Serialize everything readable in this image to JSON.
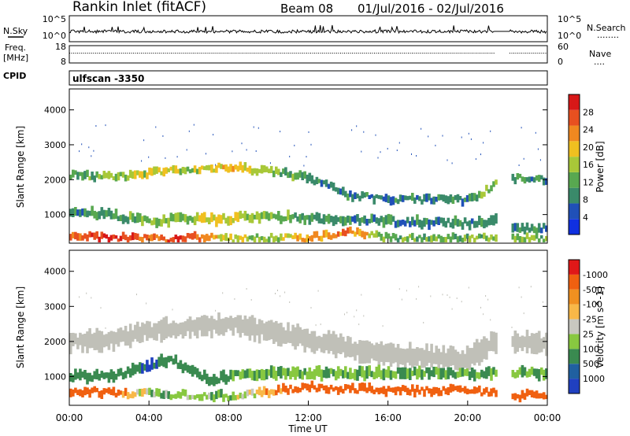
{
  "header": {
    "title": "Rankin Inlet (fitACF)",
    "beam": "Beam 08",
    "date_range": "01/Jul/2016 - 02/Jul/2016"
  },
  "sky_panel": {
    "left_label": "N.Sky",
    "right_label": "N.Search",
    "left_ticks": [
      "10^5",
      "10^0"
    ],
    "right_ticks": [
      "10^5",
      "10^0"
    ],
    "right_legend_glyph": "........"
  },
  "freq_panel": {
    "left_label_line1": "Freq.",
    "left_label_line2": "[MHz]",
    "right_label": "Nave",
    "left_ticks": [
      "18",
      "8"
    ],
    "right_ticks": [
      "60",
      "0"
    ],
    "right_legend_glyph": "...."
  },
  "cpid": {
    "label": "CPID",
    "value": "ulfscan -3350"
  },
  "x_axis": {
    "label": "Time UT",
    "ticks": [
      "00:00",
      "04:00",
      "08:00",
      "12:00",
      "16:00",
      "20:00",
      "00:00"
    ]
  },
  "colors": {
    "power": [
      "#1030e0",
      "#2050b8",
      "#3a8a6a",
      "#58a850",
      "#a8c838",
      "#f0c020",
      "#f08820",
      "#e85020",
      "#d81818"
    ],
    "velocity": [
      "#e01818",
      "#f06010",
      "#f09020",
      "#f8b848",
      "#c8c8c0",
      "#88c840",
      "#3a8a50",
      "#2060a0",
      "#2040c0"
    ],
    "ground_scatter": "#c0c0b8"
  },
  "chart_data": [
    {
      "type": "heatmap",
      "title": "",
      "xlabel": "",
      "ylabel": "Slant Range [km]",
      "xlim": [
        "00:00",
        "00:00"
      ],
      "ylim": [
        180,
        4600
      ],
      "y_ticks": [
        "1000",
        "2000",
        "3000",
        "4000"
      ],
      "colorbar": {
        "label": "Power [dB]",
        "ticks": [
          "4",
          "8",
          "12",
          "16",
          "20",
          "24",
          "28"
        ],
        "range": [
          0,
          30
        ]
      },
      "gaps_hours": [
        [
          21.4,
          22.1
        ]
      ],
      "bands": [
        {
          "feature": "upper scatter band",
          "times_h": [
            0,
            2,
            4,
            5,
            6,
            8,
            10,
            12,
            14,
            16,
            20,
            21.3,
            22.2,
            24
          ],
          "range_km": [
            2150,
            2050,
            2200,
            2250,
            2300,
            2350,
            2250,
            2050,
            1550,
            1450,
            1400,
            1850,
            2050,
            2000
          ],
          "power_db": [
            10,
            14,
            16,
            18,
            14,
            20,
            14,
            10,
            8,
            8,
            8,
            14,
            10,
            8
          ]
        },
        {
          "feature": "lower scatter band",
          "times_h": [
            0,
            2,
            4,
            6,
            7,
            9,
            12,
            16,
            20,
            21.3,
            22.2,
            24
          ],
          "range_km": [
            1100,
            1000,
            800,
            900,
            850,
            950,
            900,
            800,
            750,
            850,
            600,
            600
          ],
          "power_db": [
            8,
            10,
            14,
            12,
            18,
            14,
            10,
            8,
            8,
            10,
            8,
            8
          ]
        },
        {
          "feature": "near-range echoes",
          "times_h": [
            0,
            2,
            4,
            5.5,
            6,
            8,
            10,
            12,
            14,
            16
          ],
          "range_km": [
            380,
            330,
            310,
            280,
            360,
            300,
            340,
            330,
            500,
            320
          ],
          "power_db": [
            24,
            28,
            22,
            28,
            24,
            16,
            14,
            20,
            22,
            12
          ]
        }
      ]
    },
    {
      "type": "heatmap",
      "title": "",
      "xlabel": "Time UT",
      "ylabel": "Slant Range [km]",
      "xlim": [
        "00:00",
        "00:00"
      ],
      "ylim": [
        180,
        4600
      ],
      "y_ticks": [
        "1000",
        "2000",
        "3000",
        "4000"
      ],
      "colorbar": {
        "label": "Velocity [m s^-1]",
        "ticks": [
          "1000",
          "500",
          "100",
          "25",
          "-25",
          "-100",
          "-500",
          "-1000"
        ],
        "range": [
          -1000,
          1000
        ]
      },
      "gaps_hours": [
        [
          21.4,
          22.1
        ]
      ],
      "bands": [
        {
          "feature": "ground scatter band",
          "times_h": [
            0,
            2,
            4,
            6,
            8,
            10,
            12,
            16,
            20,
            21.3,
            22.2,
            24
          ],
          "range_km": [
            2000,
            2050,
            2300,
            2400,
            2500,
            2300,
            2050,
            1600,
            1500,
            2000,
            2000,
            1900
          ],
          "velocity_ms": [
            0,
            0,
            0,
            0,
            0,
            0,
            0,
            0,
            0,
            0,
            0,
            0
          ]
        },
        {
          "feature": "mid-range echoes",
          "times_h": [
            2,
            4,
            5,
            6,
            7,
            8,
            9
          ],
          "range_km": [
            1000,
            1300,
            1500,
            1200,
            900,
            1000,
            1100
          ],
          "velocity_ms": [
            300,
            500,
            400,
            200,
            300,
            150,
            100
          ]
        },
        {
          "feature": "near-range echoes",
          "times_h": [
            0,
            2,
            4,
            8,
            12,
            14,
            16,
            20,
            22.5,
            24
          ],
          "range_km": [
            600,
            550,
            500,
            450,
            700,
            650,
            600,
            600,
            450,
            500
          ],
          "velocity_ms": [
            -300,
            -200,
            50,
            60,
            -200,
            -300,
            -250,
            -300,
            -250,
            -200
          ]
        }
      ]
    }
  ]
}
